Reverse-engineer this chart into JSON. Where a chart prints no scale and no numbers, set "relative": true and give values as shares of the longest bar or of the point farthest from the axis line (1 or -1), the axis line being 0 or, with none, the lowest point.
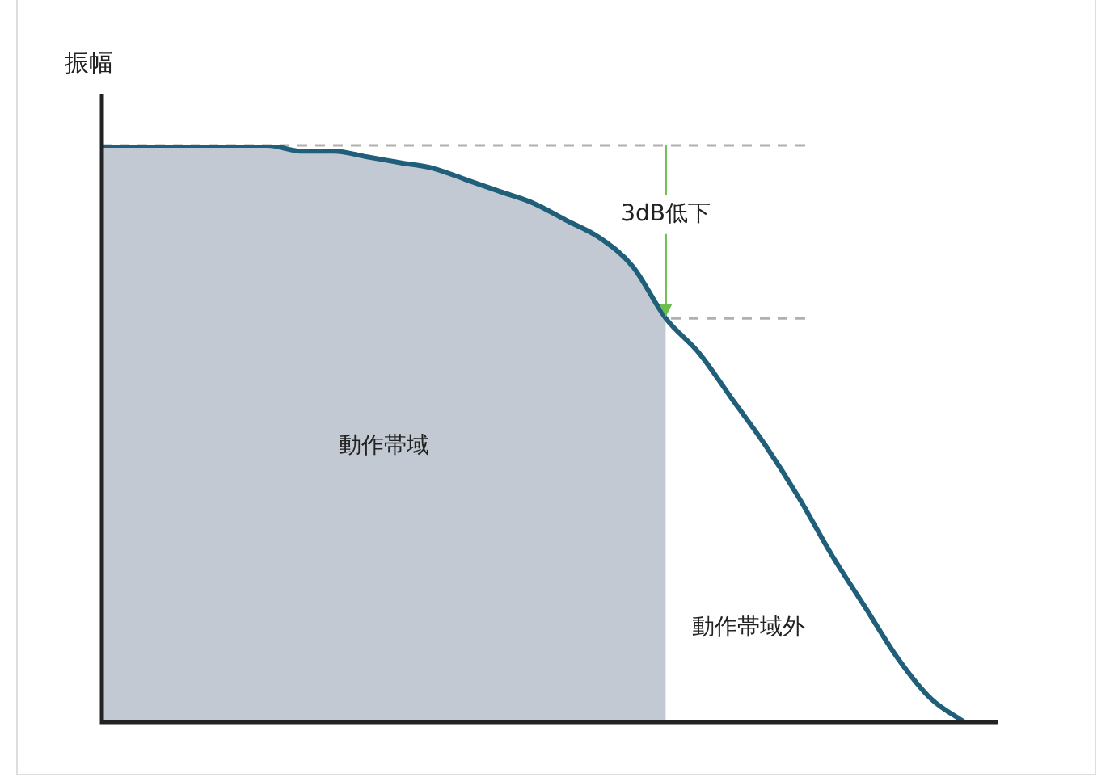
{
  "chart_data": {
    "type": "line",
    "relative": true,
    "ylabel": "振幅",
    "marker": "none",
    "legend": false,
    "categories": [
      null,
      null,
      null,
      null,
      null,
      null,
      null,
      null,
      null,
      null,
      null,
      null,
      null,
      null,
      null,
      null,
      null,
      null,
      null,
      null,
      null,
      null,
      null,
      null,
      null,
      null,
      null,
      null
    ],
    "series": [
      {
        "type": "area",
        "color": "#c3c9d3",
        "values": [
          1,
          1,
          1,
          1,
          1,
          1,
          0.99,
          0.99,
          0.98,
          0.97,
          0.96,
          0.94,
          0.92,
          0.9,
          0.87,
          0.84,
          0.79,
          0.7,
          null,
          null,
          null,
          null,
          null,
          null,
          null,
          null,
          null,
          null
        ]
      },
      {
        "color": "#1f5f7a",
        "values": [
          1,
          1,
          1,
          1,
          1,
          1,
          0.99,
          0.99,
          0.98,
          0.97,
          0.96,
          0.94,
          0.92,
          0.9,
          0.87,
          0.84,
          0.79,
          0.7,
          0.64,
          0.56,
          0.48,
          0.39,
          0.29,
          0.2,
          0.11,
          0.04,
          0,
          null
        ]
      }
    ],
    "ref_lines": [
      {
        "axis": "y",
        "value": 1,
        "color": "#b0b0b0",
        "line_style": "dashed"
      },
      {
        "axis": "y",
        "value": 0.7,
        "color": "#b0b0b0",
        "line_style": "dashed"
      }
    ],
    "annotations": [
      "動作帯域",
      "動作帯域外",
      "3dB低下"
    ]
  }
}
